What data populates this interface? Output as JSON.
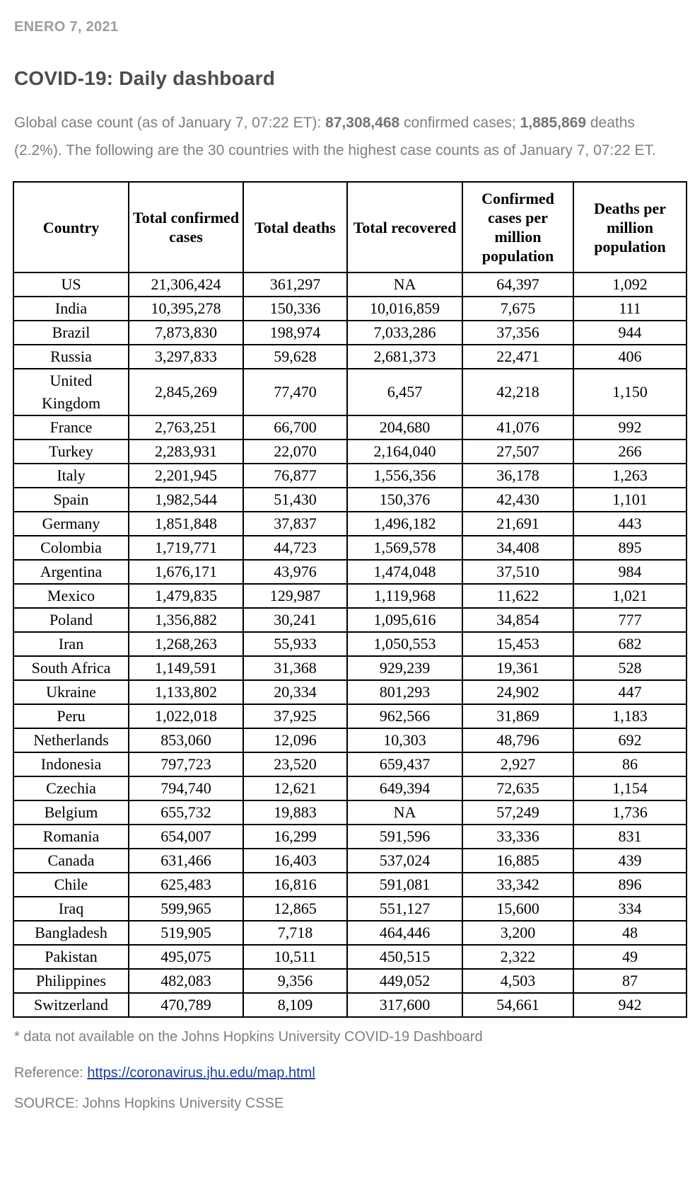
{
  "page": {
    "date_label": "ENERO 7, 2021",
    "title": "COVID-19: Daily dashboard"
  },
  "intro": {
    "prefix": "Global case count (as of January 7, 07:22 ET): ",
    "confirmed_total": "87,308,468",
    "mid": " confirmed cases; ",
    "deaths_total": "1,885,869",
    "suffix": " deaths (2.2%). The following are the 30 countries with the highest case counts as of January 7, 07:22 ET."
  },
  "table": {
    "columns": [
      "Country",
      "Total confirmed cases",
      "Total deaths",
      "Total recovered",
      "Confirmed cases per million population",
      "Deaths per million population"
    ],
    "rows": [
      [
        "US",
        "21,306,424",
        "361,297",
        "NA",
        "64,397",
        "1,092"
      ],
      [
        "India",
        "10,395,278",
        "150,336",
        "10,016,859",
        "7,675",
        "111"
      ],
      [
        "Brazil",
        "7,873,830",
        "198,974",
        "7,033,286",
        "37,356",
        "944"
      ],
      [
        "Russia",
        "3,297,833",
        "59,628",
        "2,681,373",
        "22,471",
        "406"
      ],
      [
        "United\nKingdom",
        "2,845,269",
        "77,470",
        "6,457",
        "42,218",
        "1,150"
      ],
      [
        "France",
        "2,763,251",
        "66,700",
        "204,680",
        "41,076",
        "992"
      ],
      [
        "Turkey",
        "2,283,931",
        "22,070",
        "2,164,040",
        "27,507",
        "266"
      ],
      [
        "Italy",
        "2,201,945",
        "76,877",
        "1,556,356",
        "36,178",
        "1,263"
      ],
      [
        "Spain",
        "1,982,544",
        "51,430",
        "150,376",
        "42,430",
        "1,101"
      ],
      [
        "Germany",
        "1,851,848",
        "37,837",
        "1,496,182",
        "21,691",
        "443"
      ],
      [
        "Colombia",
        "1,719,771",
        "44,723",
        "1,569,578",
        "34,408",
        "895"
      ],
      [
        "Argentina",
        "1,676,171",
        "43,976",
        "1,474,048",
        "37,510",
        "984"
      ],
      [
        "Mexico",
        "1,479,835",
        "129,987",
        "1,119,968",
        "11,622",
        "1,021"
      ],
      [
        "Poland",
        "1,356,882",
        "30,241",
        "1,095,616",
        "34,854",
        "777"
      ],
      [
        "Iran",
        "1,268,263",
        "55,933",
        "1,050,553",
        "15,453",
        "682"
      ],
      [
        "South Africa",
        "1,149,591",
        "31,368",
        "929,239",
        "19,361",
        "528"
      ],
      [
        "Ukraine",
        "1,133,802",
        "20,334",
        "801,293",
        "24,902",
        "447"
      ],
      [
        "Peru",
        "1,022,018",
        "37,925",
        "962,566",
        "31,869",
        "1,183"
      ],
      [
        "Netherlands",
        "853,060",
        "12,096",
        "10,303",
        "48,796",
        "692"
      ],
      [
        "Indonesia",
        "797,723",
        "23,520",
        "659,437",
        "2,927",
        "86"
      ],
      [
        "Czechia",
        "794,740",
        "12,621",
        "649,394",
        "72,635",
        "1,154"
      ],
      [
        "Belgium",
        "655,732",
        "19,883",
        "NA",
        "57,249",
        "1,736"
      ],
      [
        "Romania",
        "654,007",
        "16,299",
        "591,596",
        "33,336",
        "831"
      ],
      [
        "Canada",
        "631,466",
        "16,403",
        "537,024",
        "16,885",
        "439"
      ],
      [
        "Chile",
        "625,483",
        "16,816",
        "591,081",
        "33,342",
        "896"
      ],
      [
        "Iraq",
        "599,965",
        "12,865",
        "551,127",
        "15,600",
        "334"
      ],
      [
        "Bangladesh",
        "519,905",
        "7,718",
        "464,446",
        "3,200",
        "48"
      ],
      [
        "Pakistan",
        "495,075",
        "10,511",
        "450,515",
        "2,322",
        "49"
      ],
      [
        "Philippines",
        "482,083",
        "9,356",
        "449,052",
        "4,503",
        "87"
      ],
      [
        "Switzerland",
        "470,789",
        "8,109",
        "317,600",
        "54,661",
        "942"
      ]
    ]
  },
  "footer": {
    "footnote": "* data not available on the Johns Hopkins University COVID-19 Dashboard",
    "reference_label": "Reference: ",
    "reference_link": "https://coronavirus.jhu.edu/map.html",
    "source": "SOURCE: Johns Hopkins University CSSE"
  },
  "colors": {
    "date_gray": "#9d9d9d",
    "title_gray": "#4d4d4d",
    "body_gray": "#7f7f7f",
    "table_text": "#000000",
    "link_blue": "#1b3fa0"
  }
}
